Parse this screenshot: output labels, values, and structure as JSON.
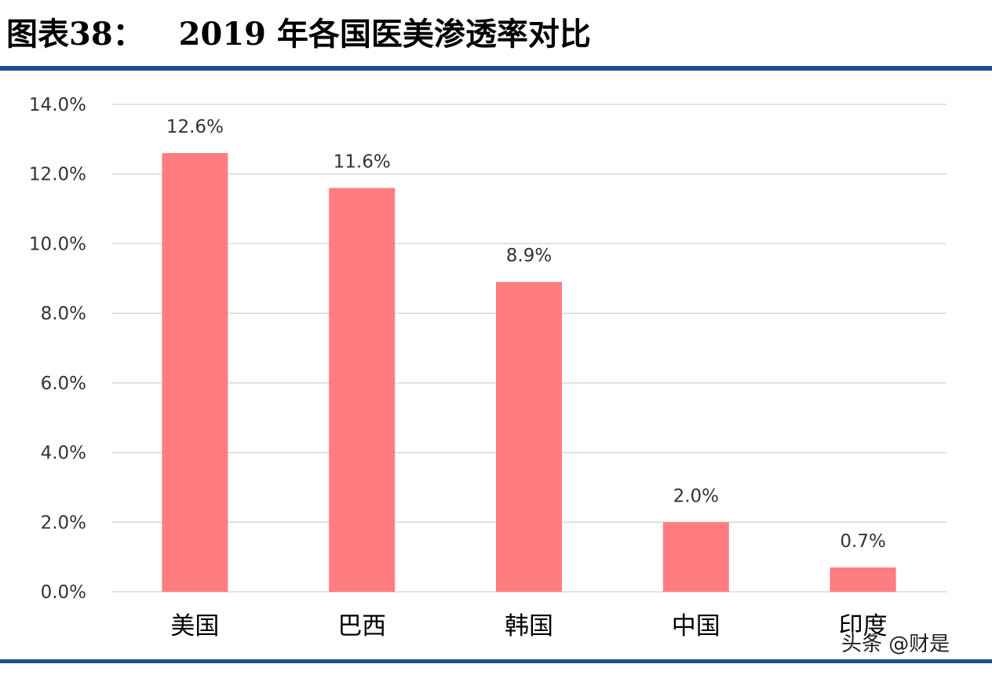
{
  "header": {
    "figure_label": "图表38：",
    "title": "2019 年各国医美渗透率对比"
  },
  "watermark": "头条 @财是",
  "colors": {
    "bar": "#ff7c80",
    "rule": "#1f4e8c",
    "grid": "#d9d9d9"
  },
  "chart_data": {
    "type": "bar",
    "title": "",
    "xlabel": "",
    "ylabel": "",
    "categories": [
      "美国",
      "巴西",
      "韩国",
      "中国",
      "印度"
    ],
    "values": [
      12.6,
      11.6,
      8.9,
      2.0,
      0.7
    ],
    "data_labels": [
      "12.6%",
      "11.6%",
      "8.9%",
      "2.0%",
      "0.7%"
    ],
    "ylim": [
      0,
      14
    ],
    "yticks": [
      0,
      2,
      4,
      6,
      8,
      10,
      12,
      14
    ],
    "ytick_labels": [
      "0.0%",
      "2.0%",
      "4.0%",
      "6.0%",
      "8.0%",
      "10.0%",
      "12.0%",
      "14.0%"
    ],
    "grid": true,
    "legend": "none"
  }
}
